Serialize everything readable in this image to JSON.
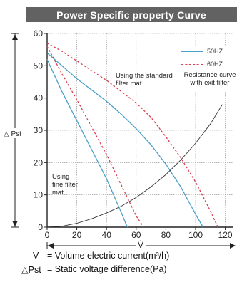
{
  "title": "Power Specific property Curve",
  "chart_data": {
    "type": "line",
    "xlabel": "V̇",
    "ylabel": "△ Pst",
    "xlim": [
      0,
      125
    ],
    "ylim": [
      0,
      60
    ],
    "xticks": [
      "0",
      "20",
      "40",
      "60",
      "80",
      "100",
      "120"
    ],
    "yticks": [
      "0",
      "10",
      "20",
      "30",
      "40",
      "50",
      "60"
    ],
    "grid": true,
    "legend": {
      "position": "top-right",
      "entries": [
        "50HZ",
        "60HZ",
        "Resistance curve with exit filter"
      ]
    },
    "series": [
      {
        "name": "50HZ",
        "group": "Using the standard filter mat",
        "color": "#4aa0c8",
        "style": "solid",
        "x": [
          0,
          10,
          20,
          30,
          40,
          50,
          60,
          70,
          80,
          90,
          100,
          105
        ],
        "y": [
          54,
          50,
          46,
          42.5,
          39,
          35,
          30.5,
          25.5,
          19.5,
          12.5,
          4,
          0
        ]
      },
      {
        "name": "60HZ",
        "group": "Using the standard filter mat",
        "color": "#d94050",
        "style": "dashed",
        "x": [
          0,
          10,
          20,
          30,
          40,
          50,
          60,
          70,
          80,
          90,
          100,
          110,
          115
        ],
        "y": [
          57,
          54.5,
          51.5,
          48.5,
          45.5,
          42,
          38.5,
          34,
          28,
          21.5,
          14,
          5,
          0
        ]
      },
      {
        "name": "50HZ",
        "group": "Using fine filter mat",
        "color": "#4aa0c8",
        "style": "solid",
        "x": [
          0,
          10,
          20,
          30,
          40,
          50,
          54
        ],
        "y": [
          52,
          42,
          33,
          24,
          15,
          4.5,
          0
        ]
      },
      {
        "name": "60HZ",
        "group": "Using fine filter mat",
        "color": "#d94050",
        "style": "dashed",
        "x": [
          0,
          10,
          20,
          30,
          40,
          50,
          60,
          65
        ],
        "y": [
          56,
          47.5,
          39.5,
          31,
          22.5,
          13,
          3.5,
          0
        ]
      },
      {
        "name": "Resistance curve with exit filter",
        "color": "#333333",
        "style": "solid",
        "x": [
          0,
          10,
          20,
          30,
          40,
          50,
          60,
          70,
          80,
          90,
          100,
          110,
          118
        ],
        "y": [
          0,
          0.3,
          1.2,
          2.6,
          4.4,
          6.5,
          9.2,
          12.5,
          16.3,
          20.8,
          26,
          32,
          38
        ]
      }
    ],
    "annotations": [
      "Using the standard filter mat",
      "Using fine filter mat"
    ]
  },
  "legend_labels": {
    "hz50": "50HZ",
    "hz60": "60HZ",
    "resist": "Resistance curve with exit filter"
  },
  "notes": {
    "standard": "Using the standard filter mat",
    "fine": "Using fine filter mat"
  },
  "definitions": {
    "v_symbol": "V̇",
    "v_text": "= Volume electric current(m³/h)",
    "p_symbol": "△Pst",
    "p_text": "= Static voltage difference(Pa)"
  }
}
